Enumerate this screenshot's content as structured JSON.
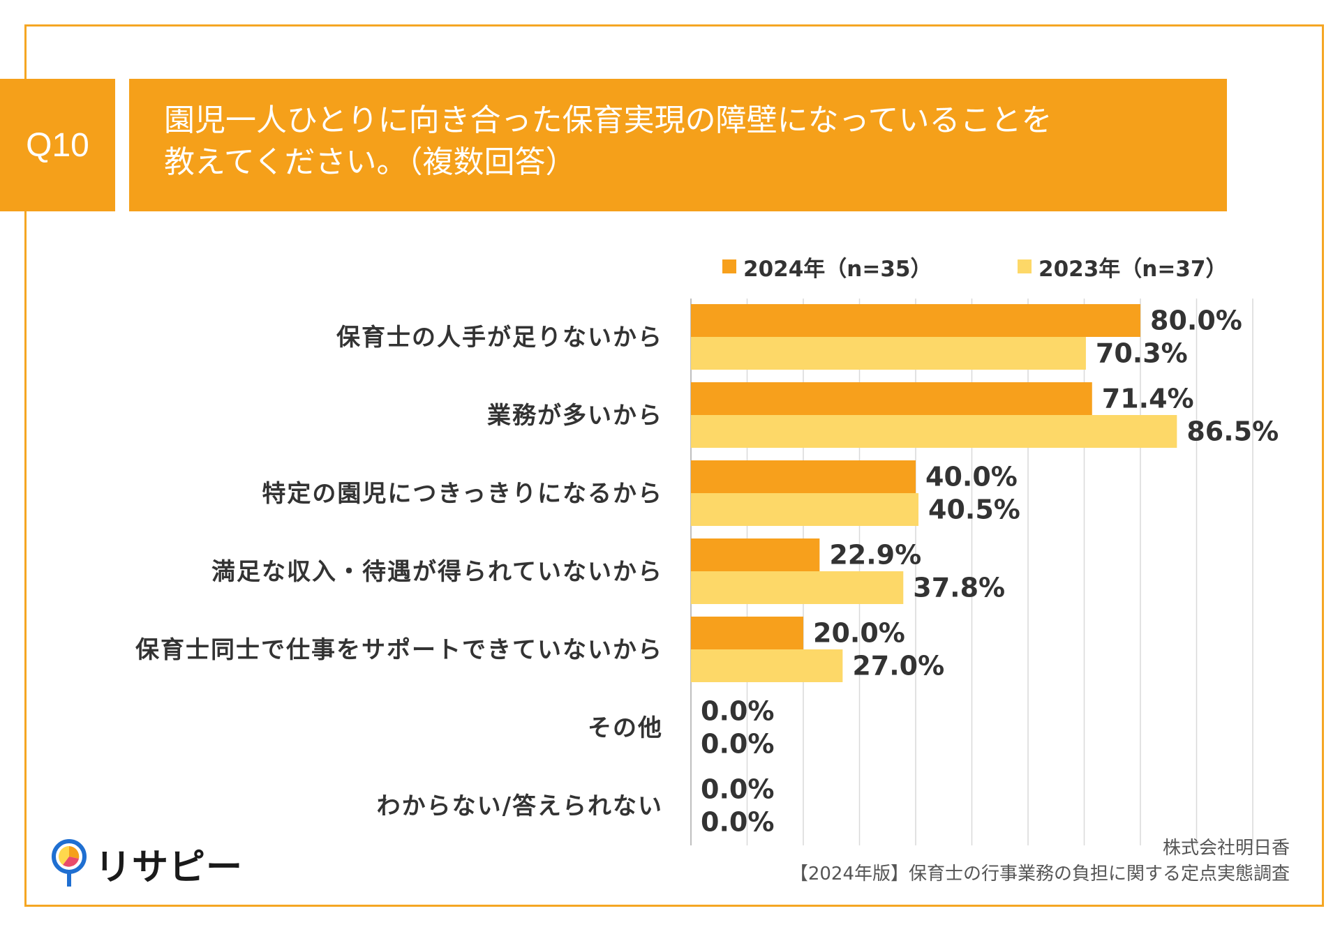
{
  "header": {
    "q_number": "Q10",
    "title_line1": "園児一人ひとりに向き合った保育実現の障壁になっていることを",
    "title_line2": "教えてください。（複数回答）"
  },
  "colors": {
    "accent": "#f5a01a",
    "series_2024": "#f7a01c",
    "series_2023": "#fdd868",
    "grid": "#d9d9d9"
  },
  "chart_data": {
    "type": "bar",
    "orientation": "horizontal",
    "categories": [
      "保育士の人手が足りないから",
      "業務が多いから",
      "特定の園児につきっきりになるから",
      "満足な収入・待遇が得られていないから",
      "保育士同士で仕事をサポートできていないから",
      "その他",
      "わからない/答えられない"
    ],
    "series": [
      {
        "name": "2024年（n=35）",
        "values": [
          80.0,
          71.4,
          40.0,
          22.9,
          20.0,
          0.0,
          0.0
        ],
        "labels": [
          "80.0%",
          "71.4%",
          "40.0%",
          "22.9%",
          "20.0%",
          "0.0%",
          "0.0%"
        ]
      },
      {
        "name": "2023年（n=37）",
        "values": [
          70.3,
          86.5,
          40.5,
          37.8,
          27.0,
          0.0,
          0.0
        ],
        "labels": [
          "70.3%",
          "86.5%",
          "40.5%",
          "37.8%",
          "27.0%",
          "0.0%",
          "0.0%"
        ]
      }
    ],
    "xlim": [
      0,
      100
    ],
    "grid": true,
    "legend": "top"
  },
  "footer": {
    "company": "株式会社明日香",
    "survey": "【2024年版】保育士の行事業務の負担に関する定点実態調査"
  },
  "logo": {
    "text": "リサピー"
  }
}
